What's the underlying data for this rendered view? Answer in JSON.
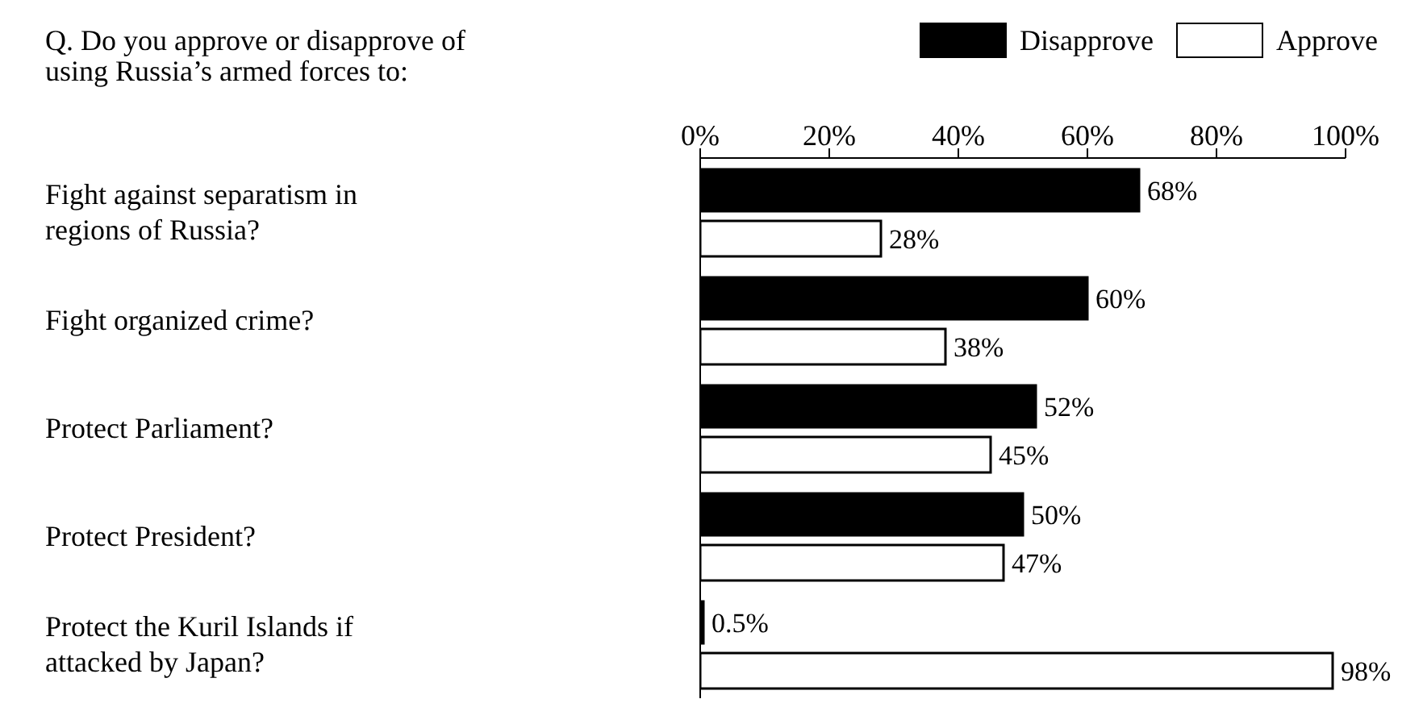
{
  "chart_data": {
    "type": "bar",
    "orientation": "horizontal",
    "title": "Q. Do you approve or disapprove of using Russia’s armed forces to:",
    "categories": [
      "Fight against separatism in regions of Russia?",
      "Fight organized crime?",
      "Protect Parliament?",
      "Protect President?",
      "Protect the Kuril Islands if attacked by Japan?"
    ],
    "series": [
      {
        "name": "Disapprove",
        "color": "#000000",
        "values": [
          68,
          60,
          52,
          50,
          0.5
        ],
        "value_labels": [
          "68%",
          "60%",
          "52%",
          "50%",
          "0.5%"
        ]
      },
      {
        "name": "Approve",
        "color": "#ffffff",
        "values": [
          28,
          38,
          45,
          47,
          98
        ],
        "value_labels": [
          "28%",
          "38%",
          "45%",
          "47%",
          "98%"
        ]
      }
    ],
    "x2lim": [
      0,
      100
    ],
    "x2ticks": [
      {
        "value": 0,
        "label": "0%"
      },
      {
        "value": 20,
        "label": "20%"
      },
      {
        "value": 40,
        "label": "40%"
      },
      {
        "value": 60,
        "label": "60%"
      },
      {
        "value": 80,
        "label": "80%"
      },
      {
        "value": 100,
        "label": "100%"
      }
    ],
    "legend": "top right"
  }
}
